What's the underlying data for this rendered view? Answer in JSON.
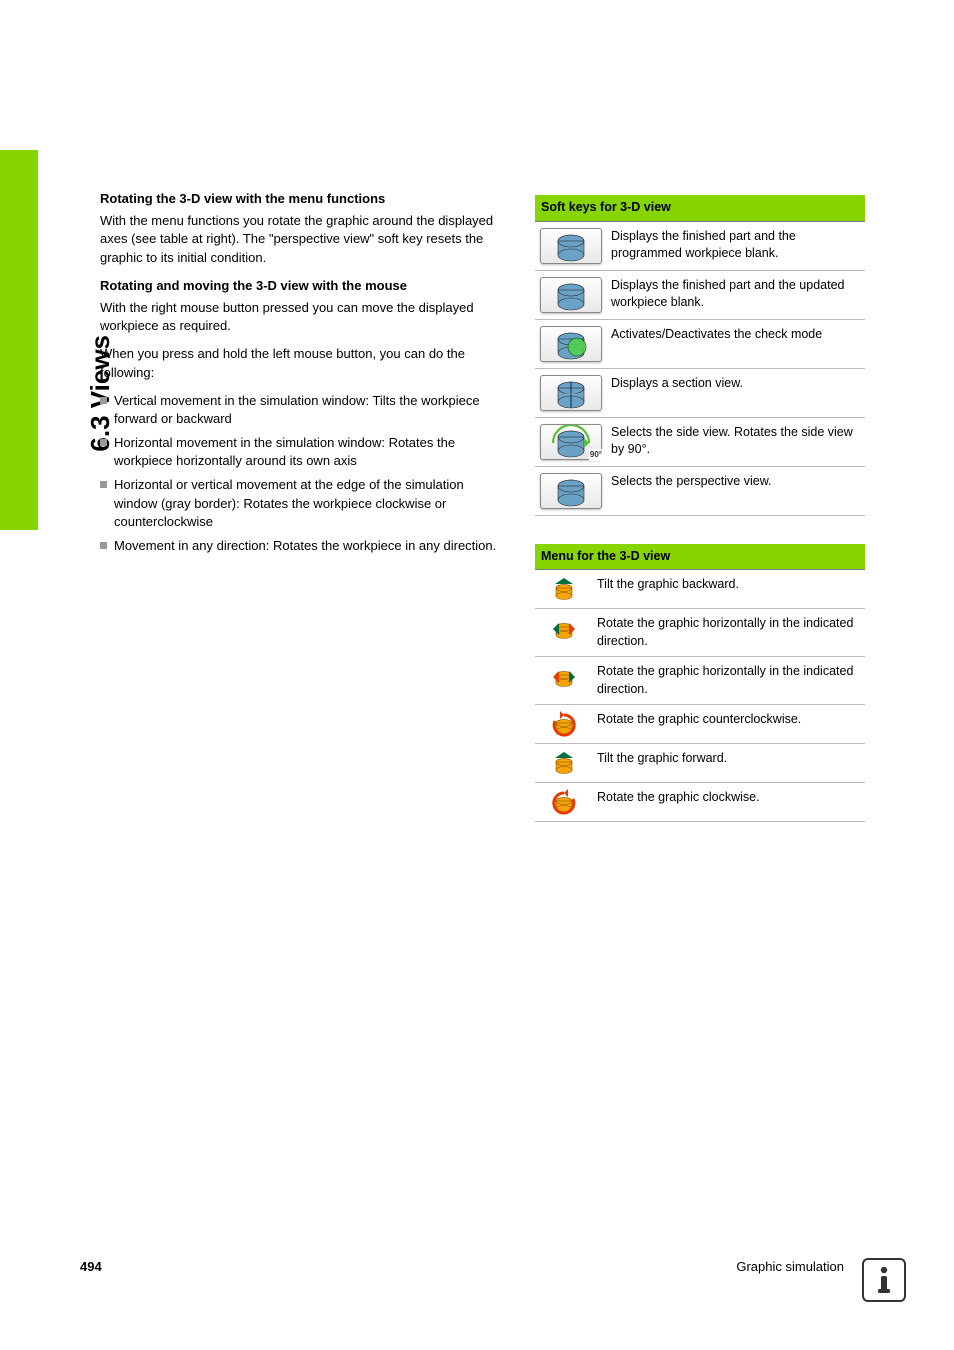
{
  "sidebar": {
    "title": "6.3 Views"
  },
  "left": {
    "heading1": "Rotating the 3-D view with the menu functions",
    "para1": "With the menu functions you rotate the graphic around the displayed axes (see table at right). The \"perspective view\" soft key resets the graphic to its initial condition.",
    "heading2": "Rotating and moving the 3-D view with the mouse",
    "para2": "With the right mouse button pressed you can move the displayed workpiece as required.",
    "para3": "When you press and hold the left mouse button, you can do the following:",
    "bullets": [
      "Vertical movement in the simulation window: Tilts the workpiece forward or backward",
      "Horizontal movement in the simulation window: Rotates the workpiece horizontally around its own axis",
      "Horizontal or vertical movement at the edge of the simulation window (gray border): Rotates the workpiece clockwise or counterclockwise",
      "Movement in any direction: Rotates the workpiece in any direction."
    ]
  },
  "softkeys": {
    "title": "Soft keys for 3-D view",
    "header_bg": "#86d400",
    "rows": [
      {
        "icon": "cylinder-plain",
        "fill": "#6aa2c7",
        "text": "Displays the finished part and the programmed workpiece blank."
      },
      {
        "icon": "cylinder-plain",
        "fill": "#6aa2c7",
        "text": "Displays the finished part and the updated workpiece blank."
      },
      {
        "icon": "cylinder-overlay",
        "fill": "#6aa2c7",
        "overlay": "#4fd24a",
        "text": "Activates/Deactivates the check mode"
      },
      {
        "icon": "cylinder-section",
        "fill": "#6aa2c7",
        "text": "Displays a section view."
      },
      {
        "icon": "cylinder-rotate",
        "fill": "#6aa2c7",
        "arrow": "#58c034",
        "badge": "90°",
        "text": "Selects the side view. Rotates the side view by 90°."
      },
      {
        "icon": "cylinder-plain",
        "fill": "#6aa2c7",
        "text": "Selects the perspective view."
      }
    ]
  },
  "menu": {
    "title": "Menu for the 3-D view",
    "rows": [
      {
        "icon": "tilt-back",
        "text": "Tilt the graphic backward."
      },
      {
        "icon": "rot-horiz-1",
        "text": "Rotate the graphic horizontally in the indicated direction."
      },
      {
        "icon": "rot-horiz-2",
        "text": "Rotate the graphic horizontally in the indicated direction."
      },
      {
        "icon": "rot-ccw",
        "text": "Rotate the graphic counterclockwise."
      },
      {
        "icon": "tilt-fwd",
        "text": "Tilt the graphic forward."
      },
      {
        "icon": "rot-cw",
        "text": "Rotate the graphic clockwise."
      }
    ],
    "icon_colors": {
      "body": "#f7a400",
      "arrow": "#e63a00",
      "accent": "#006e3a"
    }
  },
  "footer": {
    "page": "494",
    "title": "Graphic simulation"
  }
}
